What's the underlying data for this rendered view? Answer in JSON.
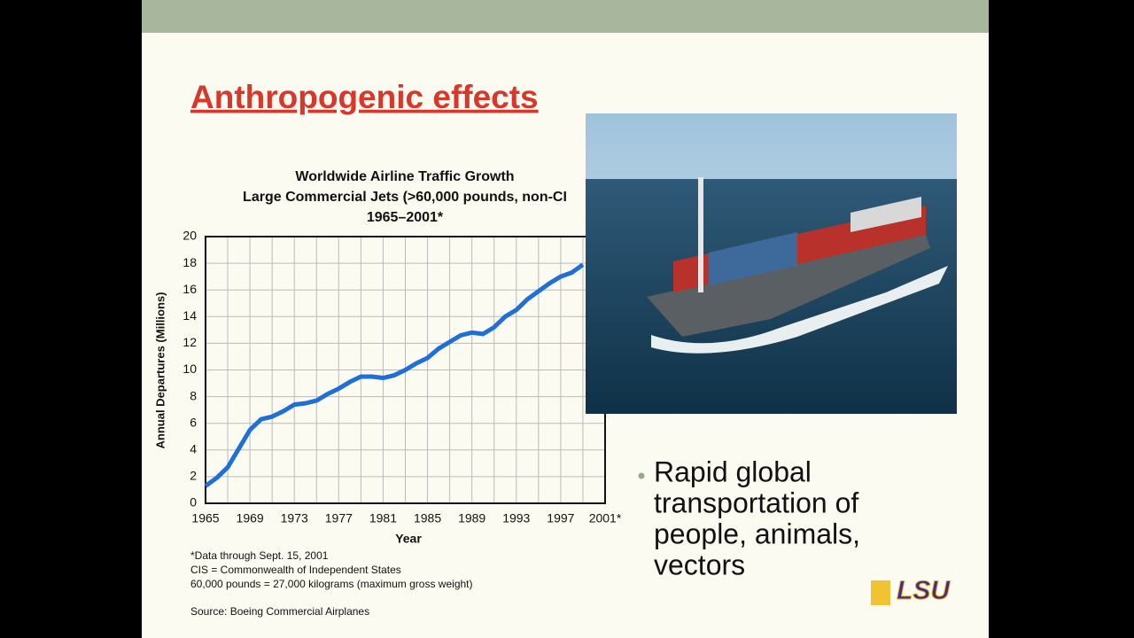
{
  "slide": {
    "title": "Anthropogenic effects",
    "bullet": [
      "Rapid global",
      "transportation of",
      "people, animals,",
      "vectors"
    ],
    "logo": "LSU"
  },
  "chart_data": {
    "type": "line",
    "title": [
      "Worldwide Airline Traffic Growth",
      "Large Commercial Jets (>60,000 pounds, non-CI",
      "1965–2001*"
    ],
    "x_label": "Year",
    "y_label": "Annual Departures (Millions)",
    "x": [
      1965,
      1966,
      1967,
      1968,
      1969,
      1970,
      1971,
      1972,
      1973,
      1974,
      1975,
      1976,
      1977,
      1978,
      1979,
      1980,
      1981,
      1982,
      1983,
      1984,
      1985,
      1986,
      1987,
      1988,
      1989,
      1990,
      1991,
      1992,
      1993,
      1994,
      1995,
      1996,
      1997,
      1998,
      1999
    ],
    "series": [
      {
        "color": "#1f6fd6",
        "values": [
          1.3,
          1.9,
          2.7,
          4.1,
          5.5,
          6.3,
          6.5,
          6.9,
          7.4,
          7.5,
          7.7,
          8.2,
          8.6,
          9.1,
          9.5,
          9.5,
          9.4,
          9.6,
          10.0,
          10.5,
          10.9,
          11.6,
          12.1,
          12.6,
          12.8,
          12.7,
          13.2,
          14.0,
          14.5,
          15.3,
          15.9,
          16.5,
          17.0,
          17.3,
          17.9
        ]
      }
    ],
    "xlim": [
      1965,
      2001
    ],
    "ylim": [
      0,
      20
    ],
    "xticks": [
      1965,
      1969,
      1973,
      1977,
      1981,
      1985,
      1989,
      1993,
      1997,
      {
        "value": 2001,
        "label": "2001*"
      }
    ],
    "yticks": [
      0,
      2,
      4,
      6,
      8,
      10,
      12,
      14,
      16,
      18,
      20
    ],
    "grid": true,
    "notes": [
      "*Data through Sept. 15, 2001",
      "CIS = Commonwealth of Independent States",
      "60,000 pounds = 27,000 kilograms (maximum gross weight)"
    ],
    "source": "Source: Boeing Commercial Airplanes"
  }
}
